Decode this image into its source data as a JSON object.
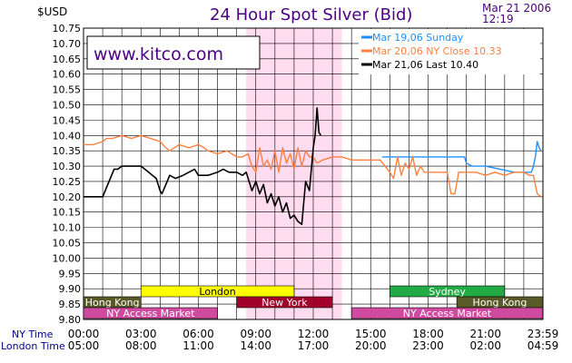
{
  "chart_data": {
    "type": "line",
    "title": "24 Hour Spot Silver (Bid)",
    "ylabel": "$USD",
    "date": "Mar 21 2006",
    "time": "12:19",
    "watermark": "www.kitco.com",
    "ylim": [
      9.8,
      10.75
    ],
    "y_ticks": [
      "10.75",
      "10.70",
      "10.65",
      "10.60",
      "10.55",
      "10.50",
      "10.45",
      "10.40",
      "10.35",
      "10.30",
      "10.25",
      "10.20",
      "10.15",
      "10.10",
      "10.05",
      "10.00",
      "9.95",
      "9.90",
      "9.85",
      "9.80"
    ],
    "x_axis_rows": [
      {
        "label": "NY Time",
        "ticks": [
          "00:00",
          "03:00",
          "06:00",
          "09:00",
          "12:00",
          "15:00",
          "18:00",
          "21:00",
          "23:59"
        ]
      },
      {
        "label": "London Time",
        "ticks": [
          "05:00",
          "08:00",
          "11:00",
          "14:00",
          "17:00",
          "20:00",
          "23:00",
          "02:00",
          "04:59"
        ]
      }
    ],
    "legend": [
      {
        "text": "Mar 19,06          Sunday",
        "color": "#1e90ff"
      },
      {
        "text": "Mar 20,06  NY  Close  10.33",
        "color": "#ff8040"
      },
      {
        "text": "Mar 21,06  Last  10.40",
        "color": "#000000"
      }
    ],
    "series": [
      {
        "color": "#1e90ff",
        "x": [
          15.6,
          19.9,
          20.0,
          20.3,
          21.0,
          22.5,
          23.0,
          23.4,
          23.5,
          23.6,
          23.7,
          23.8,
          23.9
        ],
        "y": [
          10.33,
          10.33,
          10.31,
          10.3,
          10.3,
          10.28,
          10.28,
          10.28,
          10.3,
          10.33,
          10.38,
          10.36,
          10.35
        ]
      },
      {
        "color": "#ff8040",
        "x": [
          0,
          0.5,
          1.0,
          1.2,
          1.5,
          2.0,
          2.5,
          3.0,
          3.5,
          4.0,
          4.3,
          4.5,
          5.0,
          5.5,
          6.0,
          6.3,
          6.5,
          7.0,
          7.5,
          8.0,
          8.3,
          8.6,
          8.8,
          9.0,
          9.2,
          9.4,
          9.6,
          9.8,
          10.0,
          10.2,
          10.4,
          10.6,
          10.8,
          11.0,
          11.2,
          11.4,
          11.6,
          11.8,
          12.0,
          12.2,
          12.5,
          13.0,
          13.5,
          14.0,
          14.5,
          15.0,
          15.5,
          16.0,
          16.2,
          16.4,
          16.6,
          16.8,
          17.0,
          17.2,
          17.4,
          17.6,
          17.8,
          18.0,
          18.5,
          19.0,
          19.2,
          19.4,
          19.6,
          19.8,
          20.0,
          20.5,
          21.0,
          21.5,
          22.0,
          22.5,
          23.0,
          23.3,
          23.5,
          23.7,
          23.9
        ],
        "y": [
          10.37,
          10.37,
          10.38,
          10.39,
          10.39,
          10.4,
          10.39,
          10.4,
          10.39,
          10.38,
          10.36,
          10.35,
          10.37,
          10.36,
          10.37,
          10.36,
          10.35,
          10.34,
          10.35,
          10.33,
          10.33,
          10.34,
          10.3,
          10.28,
          10.36,
          10.3,
          10.32,
          10.29,
          10.35,
          10.28,
          10.36,
          10.31,
          10.34,
          10.29,
          10.36,
          10.3,
          10.35,
          10.33,
          10.33,
          10.31,
          10.32,
          10.33,
          10.33,
          10.32,
          10.32,
          10.32,
          10.32,
          10.28,
          10.26,
          10.33,
          10.27,
          10.31,
          10.29,
          10.33,
          10.27,
          10.3,
          10.28,
          10.28,
          10.28,
          10.28,
          10.21,
          10.21,
          10.28,
          10.28,
          10.28,
          10.28,
          10.27,
          10.28,
          10.27,
          10.28,
          10.28,
          10.27,
          10.27,
          10.21,
          10.2
        ]
      },
      {
        "color": "#000000",
        "x": [
          0,
          1.0,
          1.2,
          1.6,
          1.8,
          2.0,
          2.5,
          3.0,
          3.2,
          3.4,
          3.6,
          3.8,
          4.0,
          4.1,
          4.3,
          4.5,
          4.8,
          5.2,
          5.5,
          5.8,
          6.0,
          6.5,
          7.0,
          7.3,
          7.6,
          8.0,
          8.3,
          8.5,
          8.8,
          9.0,
          9.2,
          9.4,
          9.6,
          9.8,
          10.0,
          10.2,
          10.4,
          10.6,
          10.8,
          11.0,
          11.2,
          11.4,
          11.6,
          11.8,
          12.0,
          12.1,
          12.2,
          12.3,
          12.4
        ],
        "y": [
          10.2,
          10.2,
          10.23,
          10.29,
          10.29,
          10.3,
          10.3,
          10.3,
          10.29,
          10.28,
          10.27,
          10.26,
          10.22,
          10.21,
          10.24,
          10.27,
          10.26,
          10.27,
          10.28,
          10.29,
          10.27,
          10.27,
          10.28,
          10.29,
          10.28,
          10.28,
          10.27,
          10.28,
          10.22,
          10.25,
          10.21,
          10.24,
          10.18,
          10.21,
          10.17,
          10.2,
          10.15,
          10.18,
          10.13,
          10.14,
          10.12,
          10.11,
          10.25,
          10.22,
          10.36,
          10.4,
          10.49,
          10.41,
          10.4
        ]
      }
    ],
    "shaded_region": {
      "from": 8.5,
      "to": 13.5,
      "color": "#ffdcef"
    },
    "sessions": [
      {
        "name": "London",
        "from": 3.0,
        "to": 11.0,
        "lane": 0,
        "fill": "#ffff00",
        "text": "#000000"
      },
      {
        "name": "Sydney",
        "from": 16.0,
        "to": 22.0,
        "lane": 0,
        "fill": "#22aa44",
        "text": "#ffffff"
      },
      {
        "name": "Hong  Kong",
        "from": 0,
        "to": 3.0,
        "lane": 1,
        "fill": "#5a5a28",
        "text": "#ffffff"
      },
      {
        "name": "New  York",
        "from": 8.0,
        "to": 13.0,
        "lane": 1,
        "fill": "#a0002a",
        "text": "#ffffff"
      },
      {
        "name": "Hong  Kong",
        "from": 19.5,
        "to": 23.99,
        "lane": 1,
        "fill": "#5a5a28",
        "text": "#ffffff"
      },
      {
        "name": "NY  Access  Market",
        "from": 0,
        "to": 7.0,
        "lane": 2,
        "fill": "#d04aa0",
        "text": "#ffffff"
      },
      {
        "name": "NY  Access  Market",
        "from": 14.0,
        "to": 23.99,
        "lane": 2,
        "fill": "#d04aa0",
        "text": "#ffffff"
      }
    ]
  }
}
